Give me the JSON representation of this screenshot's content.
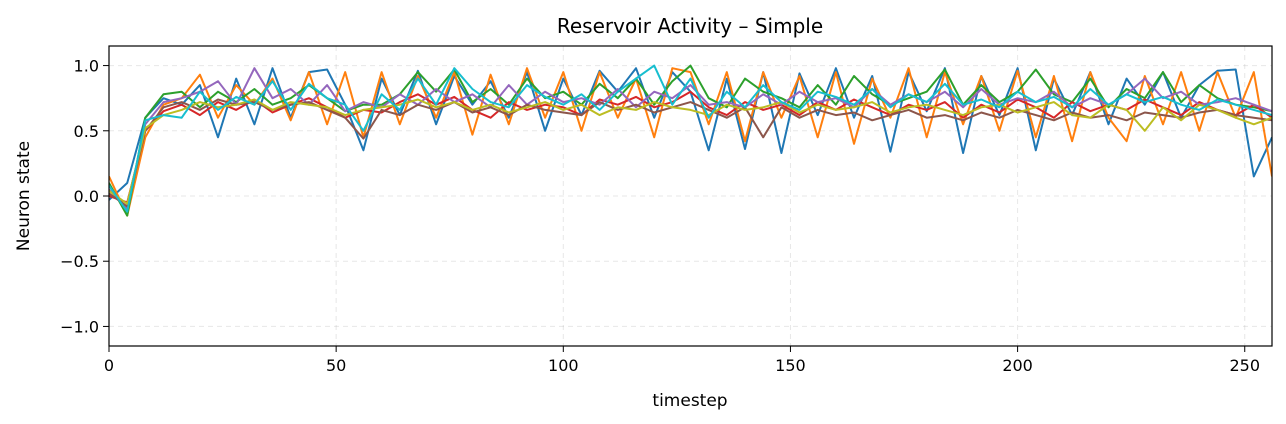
{
  "chart_data": {
    "type": "line",
    "title": "Reservoir Activity – Simple",
    "xlabel": "timestep",
    "ylabel": "Neuron state",
    "xlim": [
      0,
      256
    ],
    "ylim": [
      -1.15,
      1.15
    ],
    "xticks": [
      0,
      50,
      100,
      150,
      200,
      250
    ],
    "yticks": [
      -1.0,
      -0.5,
      0.0,
      0.5,
      1.0
    ],
    "ytick_labels": [
      "−1.0",
      "−0.5",
      "0.0",
      "0.5",
      "1.0"
    ],
    "grid": true,
    "legend": "none",
    "x": [
      0,
      4,
      8,
      12,
      16,
      20,
      24,
      28,
      32,
      36,
      40,
      44,
      48,
      52,
      56,
      60,
      64,
      68,
      72,
      76,
      80,
      84,
      88,
      92,
      96,
      100,
      104,
      108,
      112,
      116,
      120,
      124,
      128,
      132,
      136,
      140,
      144,
      148,
      152,
      156,
      160,
      164,
      168,
      172,
      176,
      180,
      184,
      188,
      192,
      196,
      200,
      204,
      208,
      212,
      216,
      220,
      224,
      228,
      232,
      236,
      240,
      244,
      248,
      252,
      256
    ],
    "series": [
      {
        "color": "#1f77b4",
        "values": [
          -0.03,
          0.1,
          0.6,
          0.75,
          0.7,
          0.85,
          0.45,
          0.9,
          0.55,
          0.98,
          0.6,
          0.95,
          0.97,
          0.7,
          0.35,
          0.9,
          0.62,
          0.96,
          0.55,
          0.92,
          0.7,
          0.88,
          0.6,
          0.95,
          0.5,
          0.9,
          0.62,
          0.96,
          0.8,
          0.98,
          0.6,
          0.95,
          0.8,
          0.35,
          0.9,
          0.36,
          0.95,
          0.33,
          0.94,
          0.62,
          0.98,
          0.6,
          0.92,
          0.34,
          0.95,
          0.65,
          0.98,
          0.33,
          0.92,
          0.62,
          0.98,
          0.35,
          0.9,
          0.62,
          0.95,
          0.55,
          0.9,
          0.7,
          0.95,
          0.6,
          0.85,
          0.96,
          0.97,
          0.15,
          0.45
        ]
      },
      {
        "color": "#ff7f0e",
        "values": [
          0.15,
          -0.15,
          0.45,
          0.7,
          0.75,
          0.93,
          0.6,
          0.85,
          0.7,
          0.9,
          0.58,
          0.95,
          0.55,
          0.95,
          0.45,
          0.95,
          0.55,
          0.92,
          0.6,
          0.95,
          0.47,
          0.93,
          0.55,
          0.98,
          0.6,
          0.95,
          0.5,
          0.95,
          0.6,
          0.9,
          0.45,
          0.98,
          0.95,
          0.55,
          0.95,
          0.42,
          0.95,
          0.6,
          0.92,
          0.45,
          0.95,
          0.4,
          0.9,
          0.6,
          0.98,
          0.45,
          0.95,
          0.55,
          0.92,
          0.5,
          0.96,
          0.45,
          0.92,
          0.42,
          0.95,
          0.6,
          0.42,
          0.92,
          0.55,
          0.95,
          0.5,
          0.95,
          0.6,
          0.95,
          0.15
        ]
      },
      {
        "color": "#2ca02c",
        "values": [
          0.1,
          -0.15,
          0.6,
          0.78,
          0.8,
          0.68,
          0.8,
          0.72,
          0.82,
          0.7,
          0.75,
          0.85,
          0.75,
          0.65,
          0.7,
          0.7,
          0.78,
          0.95,
          0.8,
          0.97,
          0.72,
          0.82,
          0.7,
          0.9,
          0.75,
          0.8,
          0.7,
          0.86,
          0.75,
          0.9,
          0.7,
          0.88,
          1.0,
          0.75,
          0.68,
          0.9,
          0.8,
          0.75,
          0.68,
          0.85,
          0.7,
          0.92,
          0.78,
          0.7,
          0.75,
          0.8,
          0.97,
          0.7,
          0.85,
          0.72,
          0.8,
          0.97,
          0.78,
          0.72,
          0.9,
          0.68,
          0.82,
          0.75,
          0.95,
          0.72,
          0.85,
          0.75,
          0.7,
          0.68,
          0.65
        ]
      },
      {
        "color": "#d62728",
        "values": [
          0.0,
          -0.05,
          0.5,
          0.65,
          0.7,
          0.62,
          0.72,
          0.66,
          0.74,
          0.64,
          0.7,
          0.75,
          0.68,
          0.6,
          0.66,
          0.64,
          0.72,
          0.78,
          0.7,
          0.76,
          0.66,
          0.6,
          0.72,
          0.66,
          0.7,
          0.68,
          0.62,
          0.74,
          0.7,
          0.76,
          0.68,
          0.72,
          0.8,
          0.68,
          0.62,
          0.72,
          0.66,
          0.7,
          0.62,
          0.72,
          0.66,
          0.74,
          0.68,
          0.62,
          0.7,
          0.66,
          0.72,
          0.6,
          0.7,
          0.64,
          0.74,
          0.68,
          0.6,
          0.72,
          0.65,
          0.7,
          0.66,
          0.74,
          0.68,
          0.62,
          0.72,
          0.66,
          0.62,
          0.7,
          0.6
        ]
      },
      {
        "color": "#9467bd",
        "values": [
          0.05,
          -0.1,
          0.55,
          0.72,
          0.75,
          0.8,
          0.88,
          0.7,
          0.98,
          0.75,
          0.82,
          0.7,
          0.85,
          0.65,
          0.72,
          0.68,
          0.78,
          0.7,
          0.82,
          0.72,
          0.78,
          0.68,
          0.85,
          0.7,
          0.8,
          0.72,
          0.75,
          0.7,
          0.82,
          0.68,
          0.8,
          0.75,
          0.85,
          0.7,
          0.72,
          0.68,
          0.78,
          0.7,
          0.8,
          0.72,
          0.75,
          0.68,
          0.82,
          0.7,
          0.78,
          0.72,
          0.8,
          0.68,
          0.82,
          0.7,
          0.75,
          0.72,
          0.8,
          0.68,
          0.75,
          0.7,
          0.78,
          0.9,
          0.75,
          0.8,
          0.7,
          0.72,
          0.75,
          0.7,
          0.65
        ]
      },
      {
        "color": "#8c564b",
        "values": [
          0.02,
          -0.08,
          0.5,
          0.68,
          0.72,
          0.66,
          0.74,
          0.7,
          0.72,
          0.66,
          0.7,
          0.72,
          0.66,
          0.6,
          0.44,
          0.66,
          0.62,
          0.7,
          0.66,
          0.72,
          0.64,
          0.68,
          0.62,
          0.7,
          0.66,
          0.64,
          0.62,
          0.72,
          0.66,
          0.7,
          0.64,
          0.68,
          0.72,
          0.66,
          0.6,
          0.68,
          0.45,
          0.68,
          0.6,
          0.66,
          0.62,
          0.64,
          0.58,
          0.62,
          0.66,
          0.6,
          0.62,
          0.58,
          0.64,
          0.6,
          0.66,
          0.62,
          0.58,
          0.64,
          0.6,
          0.62,
          0.58,
          0.64,
          0.62,
          0.6,
          0.64,
          0.66,
          0.62,
          0.6,
          0.58
        ]
      },
      {
        "color": "#bcbd22",
        "values": [
          0.04,
          -0.06,
          0.52,
          0.62,
          0.66,
          0.72,
          0.68,
          0.7,
          0.74,
          0.66,
          0.72,
          0.7,
          0.68,
          0.62,
          0.66,
          0.68,
          0.7,
          0.74,
          0.68,
          0.72,
          0.66,
          0.7,
          0.64,
          0.68,
          0.72,
          0.66,
          0.7,
          0.62,
          0.68,
          0.66,
          0.72,
          0.68,
          0.66,
          0.62,
          0.7,
          0.66,
          0.68,
          0.72,
          0.64,
          0.7,
          0.66,
          0.68,
          0.72,
          0.64,
          0.68,
          0.7,
          0.66,
          0.62,
          0.68,
          0.7,
          0.64,
          0.68,
          0.72,
          0.62,
          0.6,
          0.7,
          0.66,
          0.5,
          0.68,
          0.58,
          0.7,
          0.66,
          0.6,
          0.55,
          0.6
        ]
      },
      {
        "color": "#17becf",
        "values": [
          0.08,
          -0.12,
          0.58,
          0.62,
          0.6,
          0.8,
          0.66,
          0.76,
          0.7,
          0.88,
          0.66,
          0.86,
          0.75,
          0.7,
          0.5,
          0.78,
          0.66,
          0.9,
          0.7,
          0.98,
          0.82,
          0.72,
          0.68,
          0.85,
          0.76,
          0.7,
          0.78,
          0.66,
          0.8,
          0.9,
          1.0,
          0.7,
          0.9,
          0.6,
          0.8,
          0.68,
          0.85,
          0.72,
          0.66,
          0.8,
          0.76,
          0.7,
          0.82,
          0.68,
          0.78,
          0.72,
          0.86,
          0.7,
          0.74,
          0.68,
          0.8,
          0.72,
          0.76,
          0.68,
          0.82,
          0.7,
          0.78,
          0.72,
          0.76,
          0.7,
          0.66,
          0.74,
          0.7,
          0.66,
          0.62
        ]
      }
    ]
  }
}
